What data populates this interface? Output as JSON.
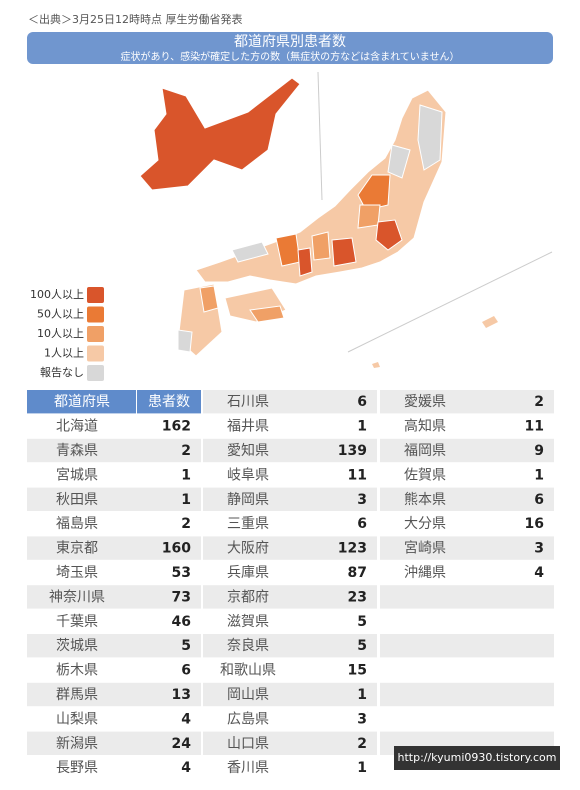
{
  "source": "＜出典＞3月25日12時時点 厚生労働省発表",
  "title": "都道府県別患者数",
  "subtitle": "症状があり、感染が確定した方の数（無症状の方などは含まれていません）",
  "legend": [
    {
      "label": "100人以上",
      "color": "#d9552b"
    },
    {
      "label": "50人以上",
      "color": "#ea7a35"
    },
    {
      "label": "10人以上",
      "color": "#f0a066"
    },
    {
      "label": "1人以上",
      "color": "#f6c9a6"
    },
    {
      "label": "報告なし",
      "color": "#d8d8d8"
    }
  ],
  "table": {
    "headers": [
      "都道府県",
      "患者数"
    ],
    "columns": [
      [
        [
          "北海道",
          162
        ],
        [
          "青森県",
          2
        ],
        [
          "宮城県",
          1
        ],
        [
          "秋田県",
          1
        ],
        [
          "福島県",
          2
        ],
        [
          "東京都",
          160
        ],
        [
          "埼玉県",
          53
        ],
        [
          "神奈川県",
          73
        ],
        [
          "千葉県",
          46
        ],
        [
          "茨城県",
          5
        ],
        [
          "栃木県",
          6
        ],
        [
          "群馬県",
          13
        ],
        [
          "山梨県",
          4
        ],
        [
          "新潟県",
          24
        ],
        [
          "長野県",
          4
        ]
      ],
      [
        [
          "石川県",
          6
        ],
        [
          "福井県",
          1
        ],
        [
          "愛知県",
          139
        ],
        [
          "岐阜県",
          11
        ],
        [
          "静岡県",
          3
        ],
        [
          "三重県",
          6
        ],
        [
          "大阪府",
          123
        ],
        [
          "兵庫県",
          87
        ],
        [
          "京都府",
          23
        ],
        [
          "滋賀県",
          5
        ],
        [
          "奈良県",
          5
        ],
        [
          "和歌山県",
          15
        ],
        [
          "岡山県",
          1
        ],
        [
          "広島県",
          3
        ],
        [
          "山口県",
          2
        ],
        [
          "香川県",
          1
        ]
      ],
      [
        [
          "愛媛県",
          2
        ],
        [
          "高知県",
          11
        ],
        [
          "福岡県",
          9
        ],
        [
          "佐賀県",
          1
        ],
        [
          "熊本県",
          6
        ],
        [
          "大分県",
          16
        ],
        [
          "宮崎県",
          3
        ],
        [
          "沖縄県",
          4
        ]
      ]
    ]
  },
  "watermark": "http://kyumi0930.tistory.com"
}
